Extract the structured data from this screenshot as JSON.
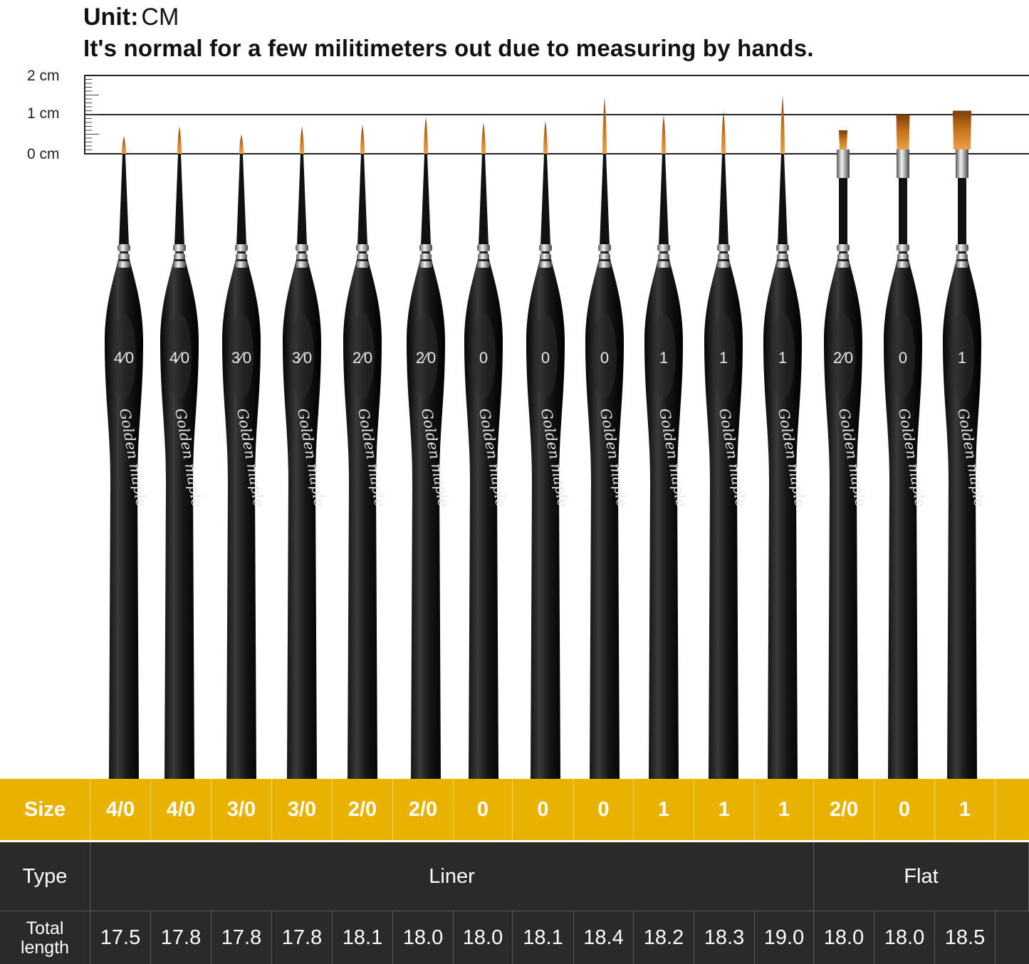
{
  "header": {
    "unit_label": "Unit:",
    "unit_value": "CM",
    "note": "It's normal for a few militimeters out due to measuring by hands."
  },
  "ruler": {
    "labels": [
      "2 cm",
      "1 cm",
      "0 cm"
    ]
  },
  "brushes": [
    {
      "handle_mark": "4⁄0",
      "head": "round",
      "tip_cm": 0.45,
      "brand": "Golden maple"
    },
    {
      "handle_mark": "4⁄0",
      "head": "round",
      "tip_cm": 0.7,
      "brand": "Golden maple"
    },
    {
      "handle_mark": "3⁄0",
      "head": "round",
      "tip_cm": 0.5,
      "brand": "Golden maple"
    },
    {
      "handle_mark": "3⁄0",
      "head": "round",
      "tip_cm": 0.7,
      "brand": "Golden maple"
    },
    {
      "handle_mark": "2⁄0",
      "head": "round",
      "tip_cm": 0.75,
      "brand": "Golden maple"
    },
    {
      "handle_mark": "2⁄0",
      "head": "round",
      "tip_cm": 0.95,
      "brand": "Golden maple"
    },
    {
      "handle_mark": "0",
      "head": "round",
      "tip_cm": 0.8,
      "brand": "Golden maple"
    },
    {
      "handle_mark": "0",
      "head": "round",
      "tip_cm": 0.85,
      "brand": "Golden maple"
    },
    {
      "handle_mark": "0",
      "head": "round",
      "tip_cm": 1.45,
      "brand": "Golden maple"
    },
    {
      "handle_mark": "1",
      "head": "round",
      "tip_cm": 1.0,
      "brand": "Golden maple"
    },
    {
      "handle_mark": "1",
      "head": "round",
      "tip_cm": 1.1,
      "brand": "Golden maple"
    },
    {
      "handle_mark": "1",
      "head": "round",
      "tip_cm": 1.5,
      "brand": "Golden maple"
    },
    {
      "handle_mark": "2⁄0",
      "head": "flat",
      "tip_cm": 0.6,
      "brand": "Golden maple"
    },
    {
      "handle_mark": "0",
      "head": "flat",
      "tip_cm": 1.0,
      "brand": "Golden maple"
    },
    {
      "handle_mark": "1",
      "head": "flat",
      "tip_cm": 1.1,
      "brand": "Golden maple"
    }
  ],
  "table": {
    "size_header": "Size",
    "sizes": [
      "4/0",
      "4/0",
      "3/0",
      "3/0",
      "2/0",
      "2/0",
      "0",
      "0",
      "0",
      "1",
      "1",
      "1",
      "2/0",
      "0",
      "1"
    ],
    "type_header": "Type",
    "types": [
      {
        "label": "Liner",
        "span": 12
      },
      {
        "label": "Flat",
        "span": 3
      }
    ],
    "length_header_line1": "Total",
    "length_header_line2": "length",
    "lengths": [
      "17.5",
      "17.8",
      "17.8",
      "17.8",
      "18.1",
      "18.0",
      "18.0",
      "18.1",
      "18.4",
      "18.2",
      "18.3",
      "19.0",
      "18.0",
      "18.0",
      "18.5"
    ]
  },
  "colors": {
    "size_row": "#e9b100",
    "dark_row": "#2a2a2a",
    "handle": "#141414",
    "bristle": "#c8741e",
    "ferrule": "#b8b8b8"
  }
}
